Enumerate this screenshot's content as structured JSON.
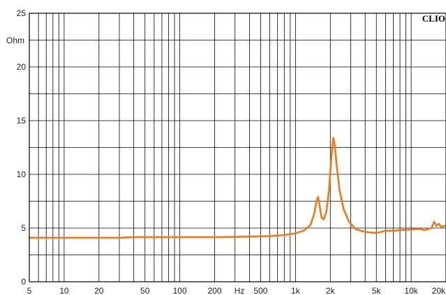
{
  "chart_data": {
    "type": "line",
    "title": "",
    "xlabel": "",
    "ylabel": "Ohm",
    "x_unit_label": "Hz",
    "brand": "CLIO",
    "x_scale": "log",
    "xlim": [
      5,
      20000
    ],
    "ylim": [
      0,
      25
    ],
    "grid": true,
    "x_ticks": [
      {
        "value": 5,
        "label": "5"
      },
      {
        "value": 10,
        "label": "10"
      },
      {
        "value": 20,
        "label": "20"
      },
      {
        "value": 50,
        "label": "50"
      },
      {
        "value": 100,
        "label": "100"
      },
      {
        "value": 200,
        "label": "200"
      },
      {
        "value": 500,
        "label": "500"
      },
      {
        "value": 1000,
        "label": "1k"
      },
      {
        "value": 2000,
        "label": "2k"
      },
      {
        "value": 5000,
        "label": "5k"
      },
      {
        "value": 10000,
        "label": "10k"
      },
      {
        "value": 20000,
        "label": "20k"
      }
    ],
    "y_ticks": [
      {
        "value": 0,
        "label": "0"
      },
      {
        "value": 5,
        "label": "5"
      },
      {
        "value": 10,
        "label": "10"
      },
      {
        "value": 15,
        "label": "15"
      },
      {
        "value": 20,
        "label": "20"
      },
      {
        "value": 25,
        "label": "25"
      }
    ],
    "series": [
      {
        "color": "#f07818",
        "x": [
          5,
          10,
          20,
          30,
          40,
          50,
          100,
          200,
          400,
          600,
          800,
          1000,
          1200,
          1350,
          1450,
          1520,
          1570,
          1620,
          1680,
          1750,
          1850,
          1950,
          2050,
          2120,
          2180,
          2260,
          2400,
          2600,
          2900,
          3300,
          3800,
          4300,
          4800,
          5300,
          6000,
          7000,
          8000,
          9000,
          10000,
          11000,
          12000,
          13000,
          14000,
          15000,
          15800,
          16500,
          17300,
          18200,
          19200,
          20000
        ],
        "y": [
          4.1,
          4.1,
          4.1,
          4.1,
          4.15,
          4.15,
          4.15,
          4.15,
          4.2,
          4.25,
          4.35,
          4.5,
          4.8,
          5.3,
          6.3,
          7.5,
          7.9,
          7.0,
          6.0,
          5.8,
          6.5,
          8.5,
          11.8,
          13.4,
          12.8,
          11.0,
          8.6,
          6.8,
          5.6,
          4.9,
          4.7,
          4.6,
          4.55,
          4.6,
          4.75,
          4.75,
          4.8,
          4.85,
          4.85,
          4.9,
          4.9,
          4.8,
          4.9,
          5.0,
          5.6,
          5.2,
          5.4,
          5.1,
          5.2,
          5.2
        ]
      }
    ]
  }
}
